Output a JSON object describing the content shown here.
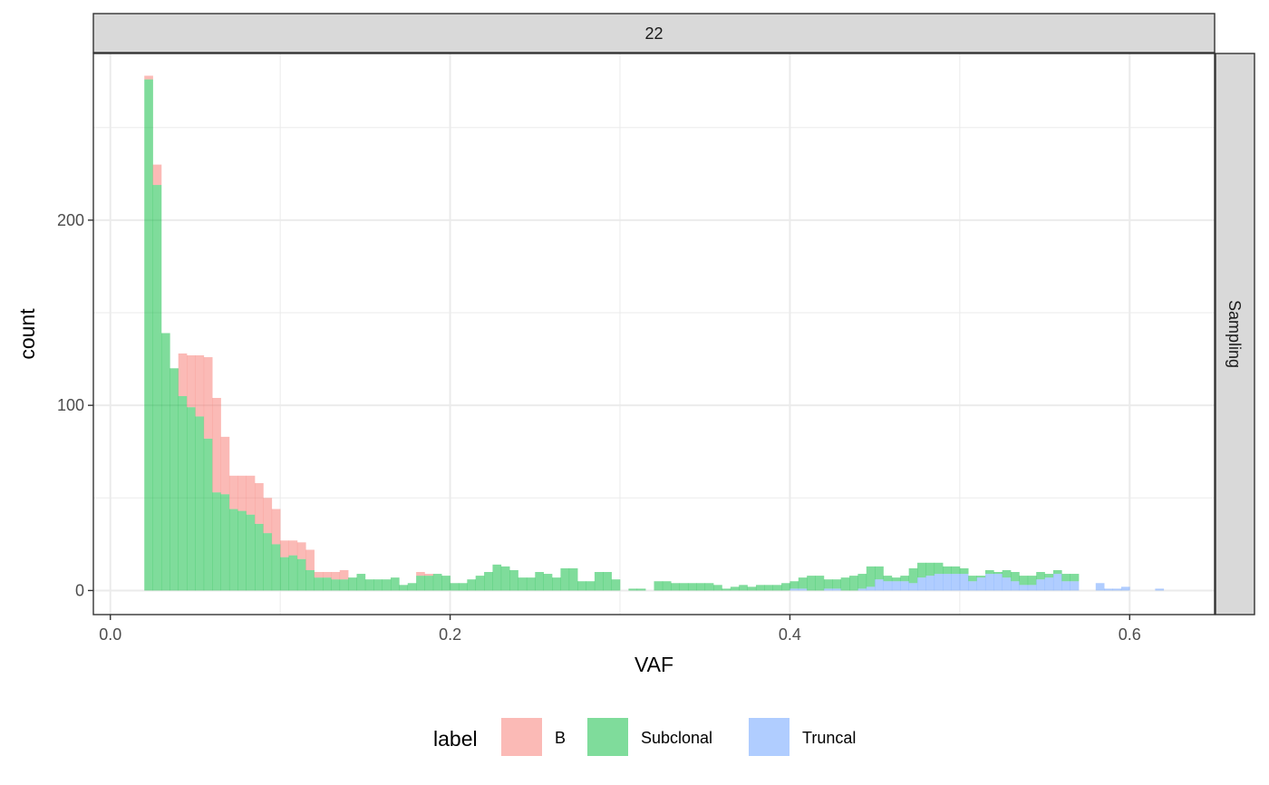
{
  "chart_data": {
    "type": "bar",
    "subtype": "stacked-histogram",
    "facet_top_label": "22",
    "facet_right_label": "Sampling",
    "xlabel": "VAF",
    "ylabel": "count",
    "xlim": [
      -0.01,
      0.65
    ],
    "ylim": [
      -13,
      290
    ],
    "bin_width": 0.005,
    "x_ticks": [
      0.0,
      0.2,
      0.4,
      0.6
    ],
    "x_tick_labels": [
      "0.0",
      "0.2",
      "0.4",
      "0.6"
    ],
    "y_ticks": [
      0,
      100,
      200
    ],
    "y_tick_labels": [
      "0",
      "100",
      "200"
    ],
    "grid": true,
    "legend": {
      "title": "label",
      "position": "bottom",
      "entries": [
        {
          "label": "B",
          "color": "#F8766D"
        },
        {
          "label": "Subclonal",
          "color": "#00BA38"
        },
        {
          "label": "Truncal",
          "color": "#619CFF"
        }
      ]
    },
    "bin_starts": [
      0.02,
      0.025,
      0.03,
      0.035,
      0.04,
      0.045,
      0.05,
      0.055,
      0.06,
      0.065,
      0.07,
      0.075,
      0.08,
      0.085,
      0.09,
      0.095,
      0.1,
      0.105,
      0.11,
      0.115,
      0.12,
      0.125,
      0.13,
      0.135,
      0.14,
      0.145,
      0.15,
      0.155,
      0.16,
      0.165,
      0.17,
      0.175,
      0.18,
      0.185,
      0.19,
      0.195,
      0.2,
      0.205,
      0.21,
      0.215,
      0.22,
      0.225,
      0.23,
      0.235,
      0.24,
      0.245,
      0.25,
      0.255,
      0.26,
      0.265,
      0.27,
      0.275,
      0.28,
      0.285,
      0.29,
      0.295,
      0.3,
      0.305,
      0.31,
      0.315,
      0.32,
      0.325,
      0.33,
      0.335,
      0.34,
      0.345,
      0.35,
      0.355,
      0.36,
      0.365,
      0.37,
      0.375,
      0.38,
      0.385,
      0.39,
      0.395,
      0.4,
      0.405,
      0.41,
      0.415,
      0.42,
      0.425,
      0.43,
      0.435,
      0.44,
      0.445,
      0.45,
      0.455,
      0.46,
      0.465,
      0.47,
      0.475,
      0.48,
      0.485,
      0.49,
      0.495,
      0.5,
      0.505,
      0.51,
      0.515,
      0.52,
      0.525,
      0.53,
      0.535,
      0.54,
      0.545,
      0.55,
      0.555,
      0.56,
      0.565,
      0.57,
      0.575,
      0.58,
      0.585,
      0.59,
      0.595,
      0.6,
      0.605,
      0.61,
      0.615
    ],
    "series": [
      {
        "name": "Truncal",
        "values": [
          0,
          0,
          0,
          0,
          0,
          0,
          0,
          0,
          0,
          0,
          0,
          0,
          0,
          0,
          0,
          0,
          0,
          0,
          0,
          0,
          0,
          0,
          0,
          0,
          0,
          0,
          0,
          0,
          0,
          0,
          0,
          0,
          0,
          0,
          0,
          0,
          0,
          0,
          0,
          0,
          0,
          0,
          0,
          0,
          0,
          0,
          0,
          0,
          0,
          0,
          0,
          0,
          0,
          0,
          0,
          0,
          0,
          0,
          0,
          0,
          0,
          0,
          0,
          0,
          0,
          0,
          0,
          0,
          0,
          0,
          0,
          0,
          0,
          0,
          0,
          0,
          1,
          1,
          0,
          0,
          1,
          1,
          0,
          0,
          1,
          2,
          6,
          5,
          5,
          5,
          4,
          7,
          8,
          9,
          9,
          9,
          9,
          5,
          7,
          9,
          9,
          7,
          5,
          3,
          3,
          6,
          7,
          9,
          5,
          5,
          0,
          0,
          4,
          1,
          1,
          2,
          0,
          0,
          0,
          1
        ]
      },
      {
        "name": "Subclonal",
        "values": [
          276,
          219,
          139,
          120,
          105,
          99,
          94,
          82,
          53,
          52,
          44,
          43,
          41,
          36,
          31,
          25,
          18,
          19,
          17,
          11,
          7,
          7,
          6,
          6,
          7,
          9,
          6,
          6,
          6,
          7,
          3,
          4,
          8,
          8,
          9,
          8,
          4,
          4,
          6,
          8,
          10,
          14,
          13,
          11,
          7,
          7,
          10,
          9,
          7,
          12,
          12,
          5,
          5,
          10,
          10,
          6,
          0,
          1,
          1,
          0,
          5,
          5,
          4,
          4,
          4,
          4,
          4,
          3,
          1,
          2,
          3,
          2,
          3,
          3,
          3,
          4,
          4,
          6,
          8,
          8,
          5,
          5,
          7,
          8,
          8,
          11,
          7,
          3,
          2,
          3,
          8,
          8,
          7,
          6,
          4,
          4,
          3,
          3,
          1,
          2,
          1,
          4,
          5,
          5,
          5,
          4,
          2,
          2,
          4,
          4,
          0,
          0,
          0,
          0,
          0,
          0,
          0,
          0,
          0,
          0
        ]
      },
      {
        "name": "B",
        "values": [
          2,
          11,
          0,
          0,
          23,
          28,
          33,
          44,
          51,
          31,
          18,
          19,
          21,
          22,
          19,
          19,
          9,
          8,
          9,
          11,
          3,
          3,
          4,
          5,
          0,
          0,
          0,
          0,
          0,
          0,
          0,
          0,
          2,
          1,
          0,
          0,
          0,
          0,
          0,
          0,
          0,
          0,
          0,
          0,
          0,
          0,
          0,
          0,
          0,
          0,
          0,
          0,
          0,
          0,
          0,
          0,
          0,
          0,
          0,
          0,
          0,
          0,
          0,
          0,
          0,
          0,
          0,
          0,
          0,
          0,
          0,
          0,
          0,
          0,
          0,
          0,
          0,
          0,
          0,
          0,
          0,
          0,
          0,
          0,
          0,
          0,
          0,
          0,
          0,
          0,
          0,
          0,
          0,
          0,
          0,
          0,
          0,
          0,
          0,
          0,
          0,
          0,
          0,
          0,
          0,
          0,
          0,
          0,
          0,
          0,
          0,
          0,
          0,
          0,
          0,
          0,
          0,
          0,
          0,
          0
        ]
      }
    ]
  }
}
